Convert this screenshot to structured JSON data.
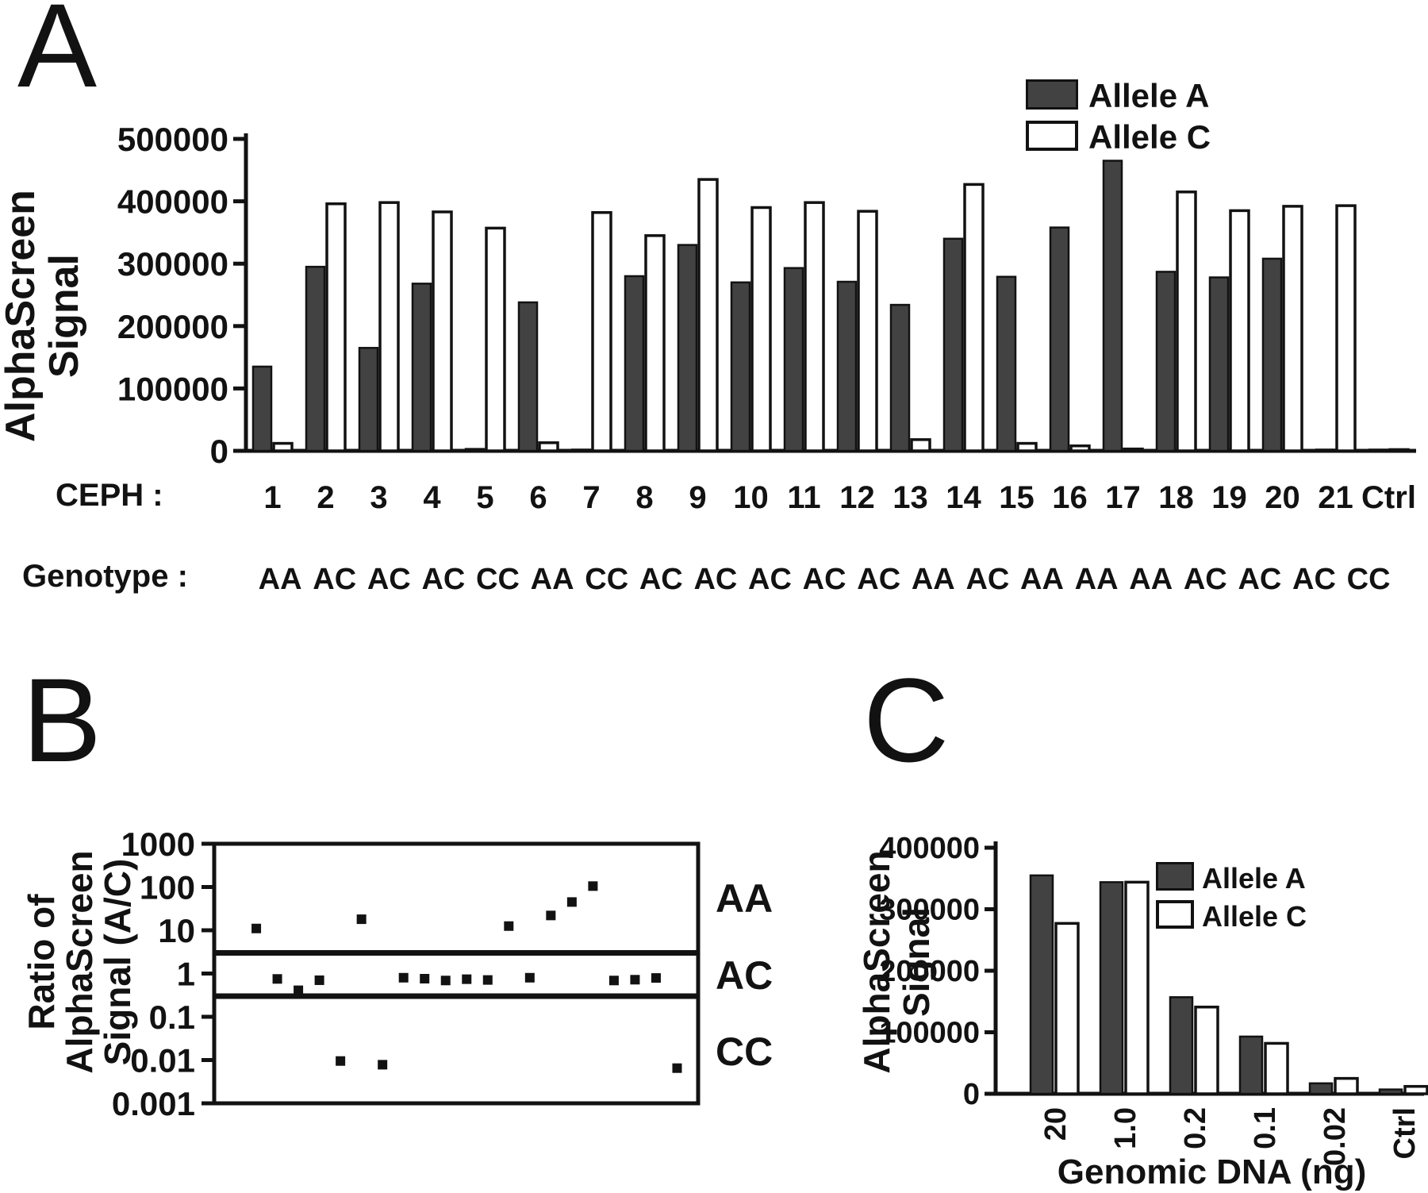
{
  "panel_labels": [
    "A",
    "B",
    "C"
  ],
  "ink_color": "#121212",
  "allele_a_bar_color": "#424242",
  "allele_c_bar_color": "#ffffff",
  "chart_data": [
    {
      "id": "A",
      "type": "bar",
      "ylabel": "AlphaScreen Signal",
      "ylabel_lines": [
        "AlphaScreen",
        "Signal"
      ],
      "ylim": [
        0,
        500000
      ],
      "yticks": [
        0,
        100000,
        200000,
        300000,
        400000,
        500000
      ],
      "grid": false,
      "legend_position": "top-right",
      "row_labels": {
        "ceph": "CEPH :",
        "genotype": "Genotype :"
      },
      "categories": [
        "1",
        "2",
        "3",
        "4",
        "5",
        "6",
        "7",
        "8",
        "9",
        "10",
        "11",
        "12",
        "13",
        "14",
        "15",
        "16",
        "17",
        "18",
        "19",
        "20",
        "21",
        "Ctrl"
      ],
      "genotypes": [
        "AA",
        "AC",
        "AC",
        "AC",
        "CC",
        "AA",
        "CC",
        "AC",
        "AC",
        "AC",
        "AC",
        "AC",
        "AA",
        "AC",
        "AA",
        "AA",
        "AA",
        "AC",
        "AC",
        "AC",
        "CC"
      ],
      "series": [
        {
          "name": "Allele A",
          "values": [
            135000,
            295000,
            165000,
            268000,
            3000,
            238000,
            2000,
            280000,
            330000,
            270000,
            293000,
            271000,
            234000,
            340000,
            279000,
            358000,
            465000,
            287000,
            278000,
            308000,
            2000,
            2000
          ]
        },
        {
          "name": "Allele C",
          "values": [
            12000,
            396000,
            398000,
            383000,
            357000,
            13000,
            382000,
            345000,
            435000,
            390000,
            398000,
            384000,
            18000,
            427000,
            12000,
            8000,
            3000,
            415000,
            385000,
            392000,
            393000,
            2000
          ]
        }
      ]
    },
    {
      "id": "B",
      "type": "scatter",
      "ylabel": "Ratio of AlphaScreen Signal (A/C)",
      "ylabel_lines": [
        "Ratio of",
        "AlphaScreen",
        "Signal (A/C)"
      ],
      "yscale": "log",
      "ylim": [
        0.001,
        1000
      ],
      "ytick_labels": [
        "1000",
        "100",
        "10",
        "1",
        "0.1",
        "0.01",
        "0.001"
      ],
      "threshold_lines": [
        3,
        0.3
      ],
      "zone_labels": [
        "AA",
        "AC",
        "CC"
      ],
      "x": [
        1,
        2,
        3,
        4,
        5,
        6,
        7,
        8,
        9,
        10,
        11,
        12,
        13,
        14,
        15,
        16,
        17,
        18,
        19,
        20,
        21
      ],
      "y": [
        11,
        0.75,
        0.41,
        0.7,
        0.0095,
        18,
        0.0078,
        0.8,
        0.76,
        0.69,
        0.74,
        0.71,
        12.5,
        0.8,
        22,
        45,
        105,
        0.69,
        0.72,
        0.79,
        0.0065
      ]
    },
    {
      "id": "C",
      "type": "bar",
      "ylabel": "AlphaScreen Signal",
      "ylabel_lines": [
        "AlphaScreen",
        "Signal"
      ],
      "xlabel": "Genomic DNA (ng)",
      "ylim": [
        0,
        400000
      ],
      "yticks": [
        0,
        100000,
        200000,
        300000,
        400000
      ],
      "grid": false,
      "legend_position": "top-right",
      "categories": [
        "20",
        "1.0",
        "0.2",
        "0.1",
        "0.02",
        "Ctrl"
      ],
      "series": [
        {
          "name": "Allele A",
          "values": [
            355000,
            344000,
            157000,
            93000,
            17000,
            7000
          ]
        },
        {
          "name": "Allele C",
          "values": [
            277000,
            344000,
            141000,
            82000,
            25000,
            12000
          ]
        }
      ]
    }
  ]
}
